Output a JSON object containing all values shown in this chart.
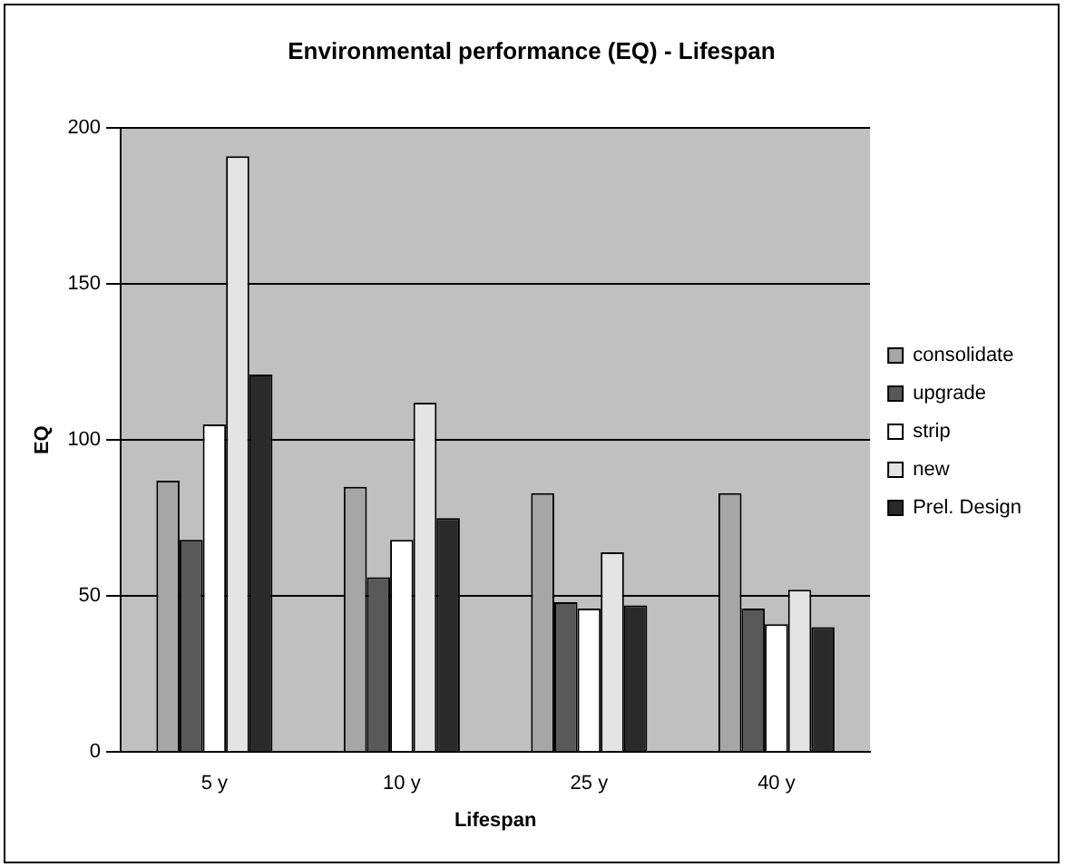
{
  "chart_data": {
    "type": "bar",
    "title": "Environmental performance (EQ) - Lifespan",
    "xlabel": "Lifespan",
    "ylabel": "EQ",
    "categories": [
      "5 y",
      "10 y",
      "25 y",
      "40 y"
    ],
    "series": [
      {
        "name": "consolidate",
        "color": "#a6a6a6",
        "values": [
          87,
          85,
          83,
          83
        ]
      },
      {
        "name": "upgrade",
        "color": "#595959",
        "values": [
          68,
          56,
          48,
          46
        ]
      },
      {
        "name": "strip",
        "color": "#ffffff",
        "values": [
          105,
          68,
          46,
          41
        ]
      },
      {
        "name": "new",
        "color": "#e4e4e4",
        "values": [
          191,
          112,
          64,
          52
        ]
      },
      {
        "name": "Prel. Design",
        "color": "#2a2a2a",
        "values": [
          121,
          75,
          47,
          40
        ]
      }
    ],
    "ylim": [
      0,
      200
    ],
    "yticks": [
      0,
      50,
      100,
      150,
      200
    ],
    "grid": "y",
    "legend": "right"
  }
}
